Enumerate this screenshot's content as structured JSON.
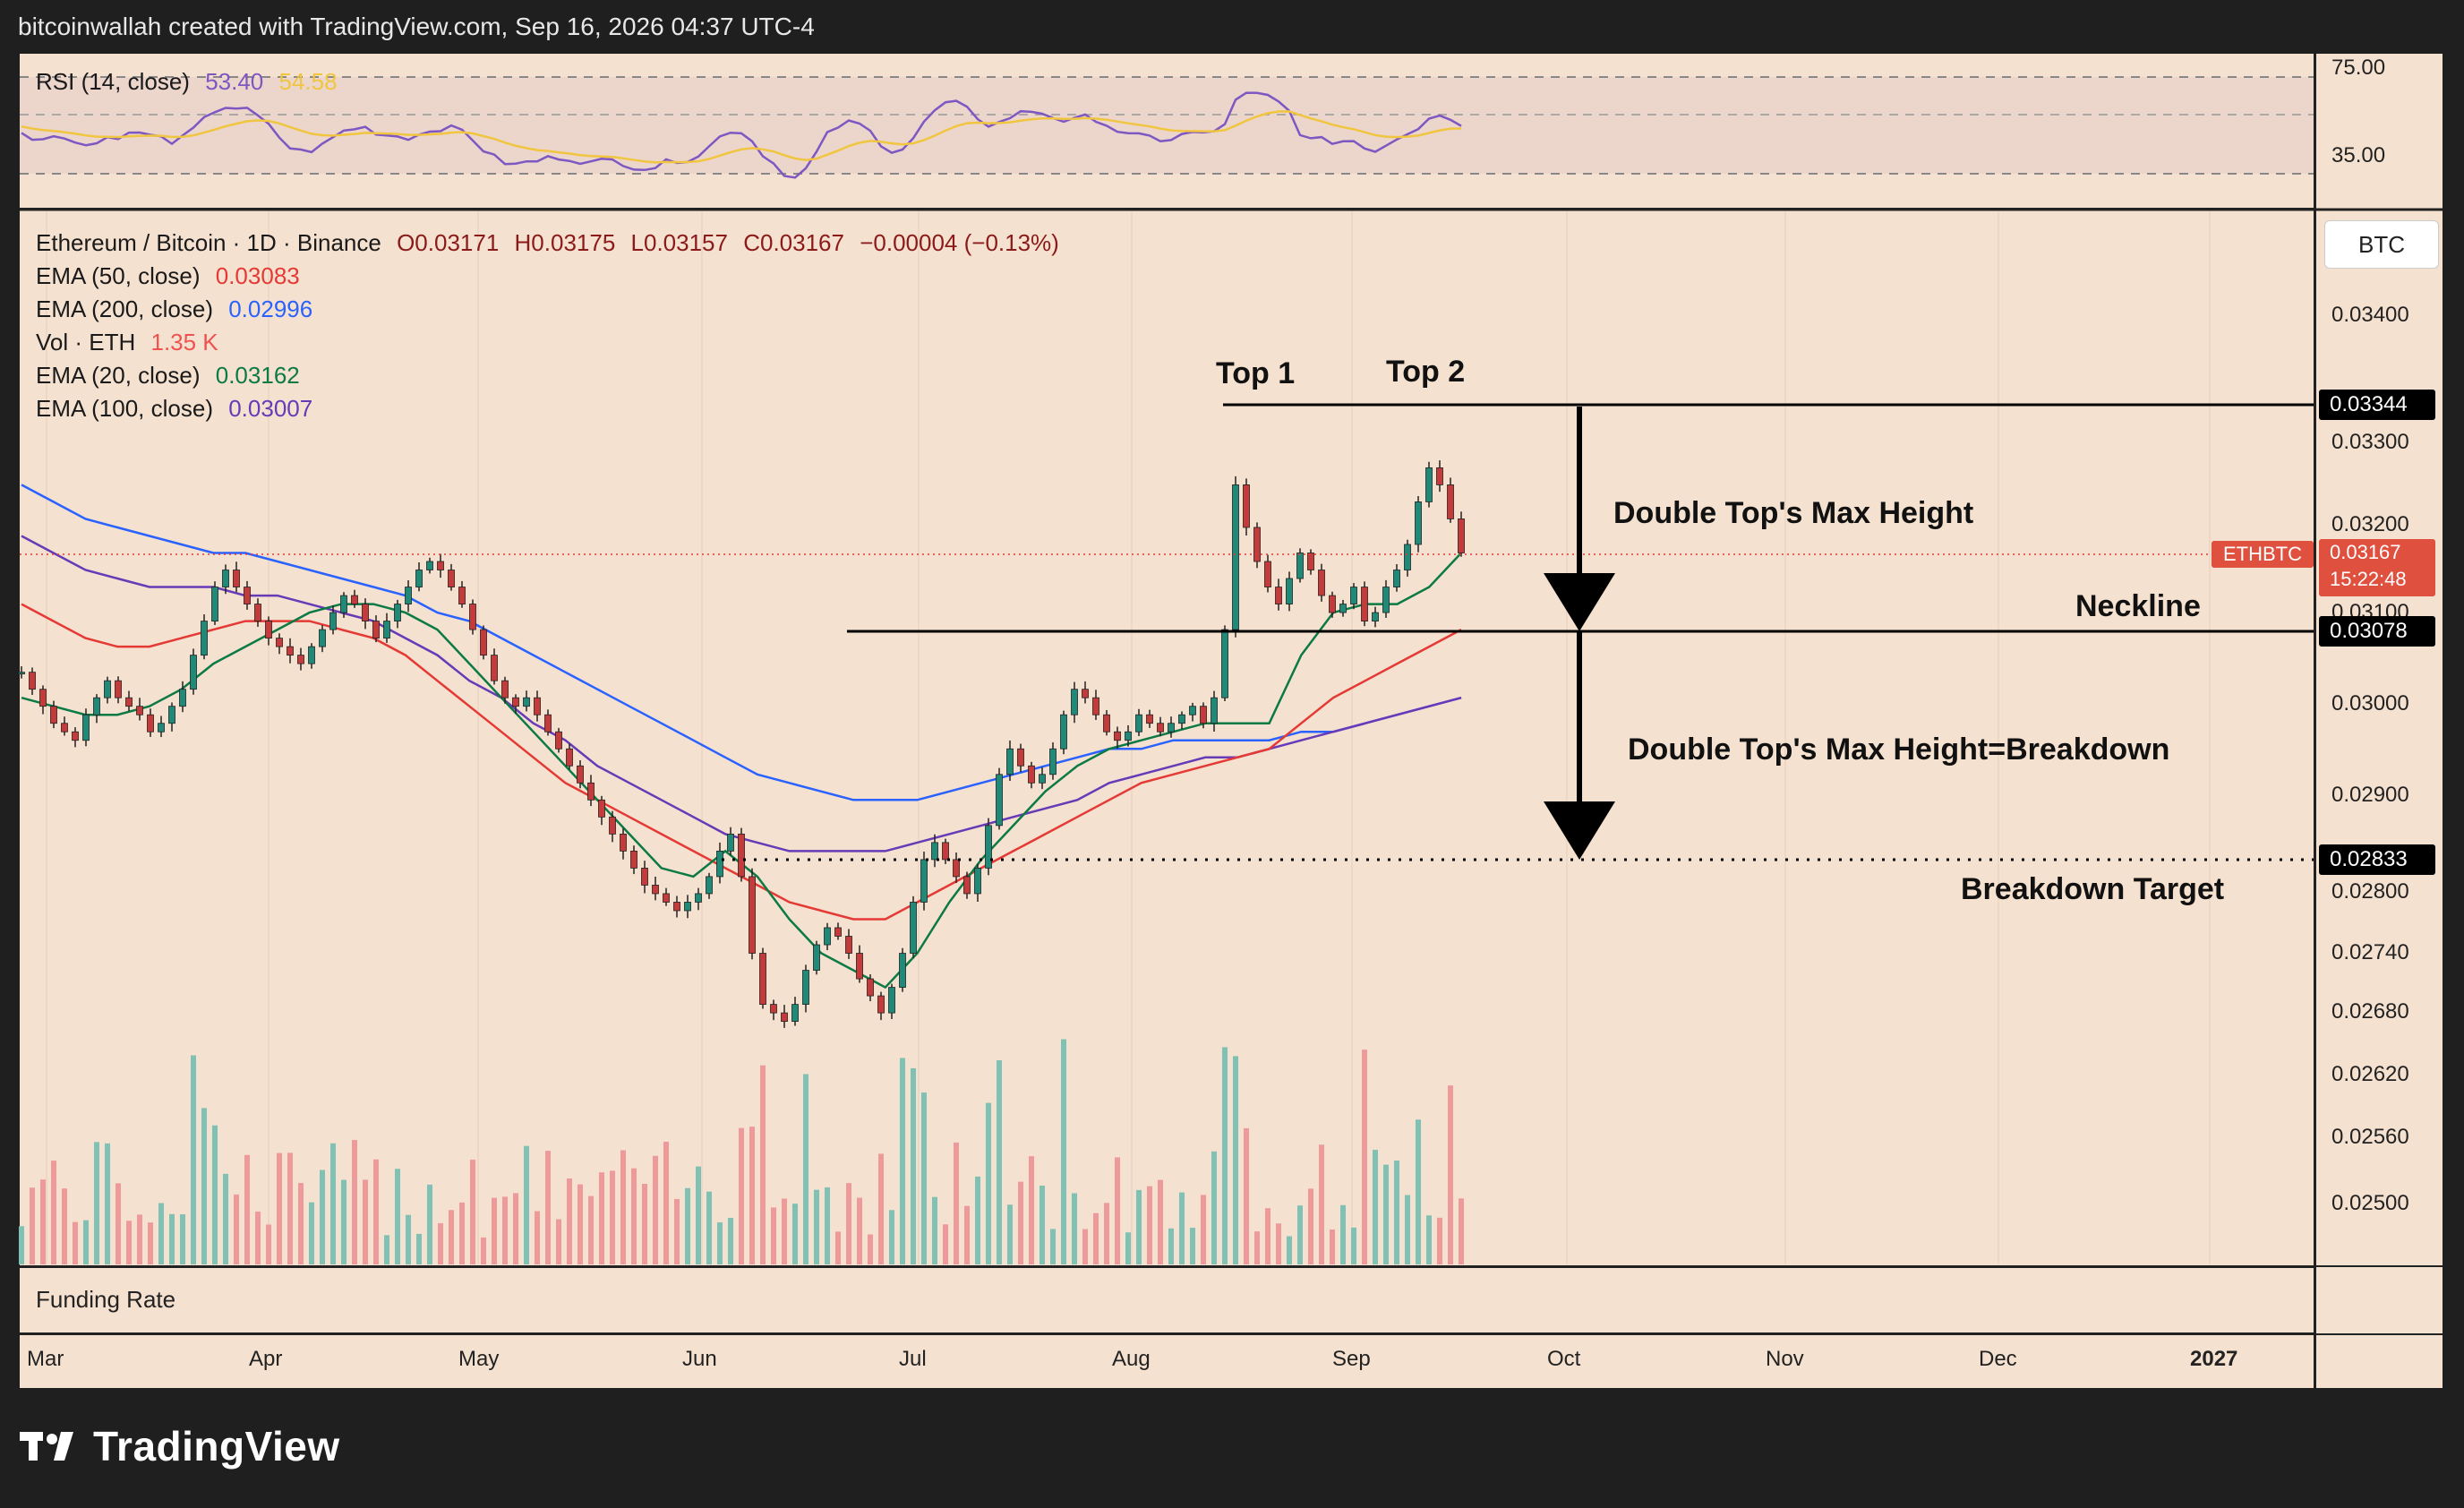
{
  "header": {
    "text": "bitcoinwallah created with TradingView.com, Sep 16, 2026 04:37 UTC-4"
  },
  "brand": {
    "name": "TradingView"
  },
  "rsi": {
    "label": "RSI (14, close)",
    "value": "53.40",
    "ma_value": "54.58",
    "levels": [
      "75.00",
      "35.00"
    ],
    "color": "#7e57c2",
    "ma_color": "#f0c540"
  },
  "legend": {
    "title": "Ethereum / Bitcoin · 1D · Binance",
    "o": "O0.03171",
    "h": "H0.03175",
    "l": "L0.03157",
    "c": "C0.03167",
    "chg": "−0.00004 (−0.13%)",
    "ema50": {
      "label": "EMA (50, close)",
      "value": "0.03083",
      "color": "#e53935"
    },
    "ema200": {
      "label": "EMA (200, close)",
      "value": "0.02996",
      "color": "#2962ff"
    },
    "vol": {
      "label": "Vol · ETH",
      "value": "1.35 K",
      "color": "#ef5350"
    },
    "ema20": {
      "label": "EMA (20, close)",
      "value": "0.03162",
      "color": "#0b7a45"
    },
    "ema100": {
      "label": "EMA (100, close)",
      "value": "0.03007",
      "color": "#673ab7"
    }
  },
  "currency_button": "BTC",
  "annotations": {
    "top1": "Top 1",
    "top2": "Top 2",
    "max_height": "Double Top's Max Height",
    "neckline": "Neckline",
    "breakdown": "Double Top's Max Height=Breakdown",
    "target": "Breakdown Target"
  },
  "price_badges": {
    "top": "0.03344",
    "neckline": "0.03078",
    "target": "0.02833",
    "symbol": "ETHBTC",
    "last": "0.03167",
    "countdown": "15:22:48"
  },
  "funding_rate": "Funding Rate",
  "chart_data": {
    "type": "candlestick",
    "y_axis_ticks": [
      "0.03400",
      "0.03300",
      "0.03200",
      "0.03100",
      "0.03000",
      "0.02900",
      "0.02800",
      "0.02740",
      "0.02680",
      "0.02620",
      "0.02560",
      "0.02500"
    ],
    "x_axis_ticks": [
      "Mar",
      "Apr",
      "May",
      "Jun",
      "Jul",
      "Aug",
      "Sep",
      "Oct",
      "Nov",
      "Dec",
      "2027"
    ],
    "levels": {
      "double_top": 0.03344,
      "neckline": 0.03078,
      "breakdown_target": 0.02833
    },
    "close_series": [
      0.0303,
      0.0301,
      0.0299,
      0.0297,
      0.0296,
      0.0295,
      0.0298,
      0.03,
      0.0302,
      0.03,
      0.0299,
      0.0298,
      0.0296,
      0.0297,
      0.0299,
      0.0301,
      0.0305,
      0.0309,
      0.0313,
      0.0315,
      0.0313,
      0.0311,
      0.0309,
      0.0307,
      0.0306,
      0.0305,
      0.0304,
      0.0306,
      0.0308,
      0.031,
      0.0312,
      0.0311,
      0.0309,
      0.0307,
      0.0309,
      0.0311,
      0.0313,
      0.0315,
      0.0316,
      0.0315,
      0.0313,
      0.0311,
      0.0308,
      0.0305,
      0.0302,
      0.03,
      0.0299,
      0.03,
      0.0298,
      0.0296,
      0.0294,
      0.0292,
      0.029,
      0.0288,
      0.0286,
      0.0284,
      0.0282,
      0.028,
      0.0278,
      0.0277,
      0.0276,
      0.0275,
      0.0276,
      0.0277,
      0.0279,
      0.0282,
      0.0284,
      0.0279,
      0.027,
      0.0264,
      0.0263,
      0.0262,
      0.0264,
      0.0268,
      0.0271,
      0.0273,
      0.0272,
      0.027,
      0.0267,
      0.0265,
      0.0263,
      0.0266,
      0.027,
      0.0276,
      0.0281,
      0.0283,
      0.0281,
      0.0279,
      0.0277,
      0.028,
      0.0285,
      0.0291,
      0.0294,
      0.0292,
      0.029,
      0.0291,
      0.0294,
      0.0298,
      0.0301,
      0.03,
      0.0298,
      0.0296,
      0.0295,
      0.0296,
      0.0298,
      0.0297,
      0.0296,
      0.0297,
      0.0298,
      0.0299,
      0.0297,
      0.03,
      0.0308,
      0.0325,
      0.032,
      0.0316,
      0.0313,
      0.0311,
      0.0314,
      0.0317,
      0.0315,
      0.0312,
      0.031,
      0.0311,
      0.0313,
      0.0309,
      0.031,
      0.0313,
      0.0315,
      0.0318,
      0.0323,
      0.0327,
      0.0325,
      0.0321,
      0.0317
    ],
    "ema20_series": [
      0.03,
      0.0299,
      0.0298,
      0.0298,
      0.0299,
      0.0301,
      0.0304,
      0.0306,
      0.0308,
      0.031,
      0.0311,
      0.0311,
      0.031,
      0.0308,
      0.0304,
      0.03,
      0.0296,
      0.0292,
      0.0288,
      0.0284,
      0.028,
      0.0279,
      0.0282,
      0.0279,
      0.0274,
      0.027,
      0.0268,
      0.0266,
      0.027,
      0.0276,
      0.0281,
      0.0285,
      0.0289,
      0.0292,
      0.0294,
      0.0295,
      0.0296,
      0.0297,
      0.0297,
      0.0297,
      0.0305,
      0.031,
      0.0311,
      0.0311,
      0.0313,
      0.0317
    ],
    "ema50_series": [
      0.0311,
      0.0309,
      0.0307,
      0.0306,
      0.0306,
      0.0307,
      0.0308,
      0.0309,
      0.0309,
      0.0309,
      0.0308,
      0.0307,
      0.0305,
      0.0302,
      0.0299,
      0.0296,
      0.0293,
      0.029,
      0.0288,
      0.0286,
      0.0284,
      0.0282,
      0.028,
      0.0278,
      0.0276,
      0.0275,
      0.0274,
      0.0274,
      0.0276,
      0.0278,
      0.028,
      0.0282,
      0.0284,
      0.0286,
      0.0288,
      0.029,
      0.0291,
      0.0292,
      0.0293,
      0.0294,
      0.0297,
      0.03,
      0.0302,
      0.0304,
      0.0306,
      0.0308
    ],
    "ema100_series": [
      0.0319,
      0.0317,
      0.0315,
      0.0314,
      0.0313,
      0.0313,
      0.0313,
      0.0312,
      0.0312,
      0.0311,
      0.031,
      0.0309,
      0.0307,
      0.0305,
      0.0302,
      0.03,
      0.0297,
      0.0295,
      0.0292,
      0.029,
      0.0288,
      0.0286,
      0.0284,
      0.0283,
      0.0282,
      0.0282,
      0.0282,
      0.0282,
      0.0283,
      0.0284,
      0.0285,
      0.0286,
      0.0287,
      0.0288,
      0.029,
      0.0291,
      0.0292,
      0.0293,
      0.0293,
      0.0294,
      0.0295,
      0.0296,
      0.0297,
      0.0298,
      0.0299,
      0.03
    ],
    "ema200_series": [
      0.0325,
      0.0323,
      0.0321,
      0.032,
      0.0319,
      0.0318,
      0.0317,
      0.0317,
      0.0316,
      0.0315,
      0.0314,
      0.0313,
      0.0312,
      0.031,
      0.0309,
      0.0307,
      0.0305,
      0.0303,
      0.0301,
      0.0299,
      0.0297,
      0.0295,
      0.0293,
      0.0291,
      0.029,
      0.0289,
      0.0288,
      0.0288,
      0.0288,
      0.0289,
      0.029,
      0.0291,
      0.0292,
      0.0293,
      0.0294,
      0.0294,
      0.0295,
      0.0295,
      0.0295,
      0.0295,
      0.0296,
      0.0296,
      0.0297,
      0.0298,
      0.0299,
      0.03
    ]
  }
}
